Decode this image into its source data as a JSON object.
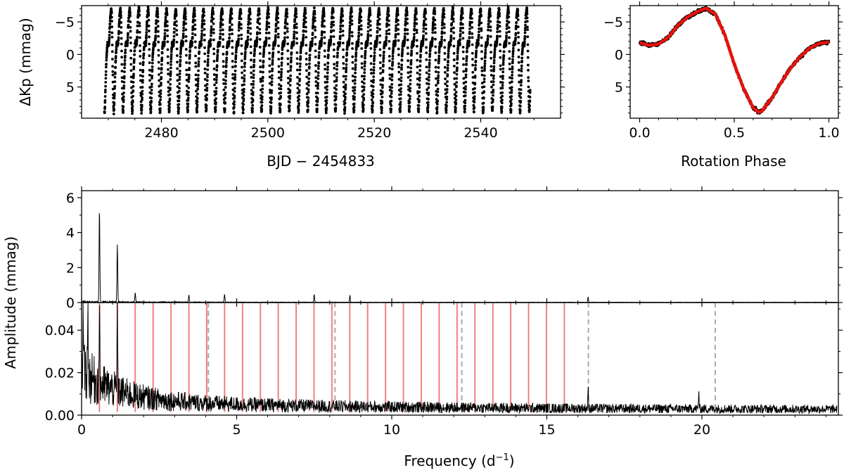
{
  "chart_data": [
    {
      "id": "light-curve",
      "type": "scatter",
      "xlabel": "BJD − 2454833",
      "ylabel": "ΔKp (mmag)",
      "xlim": [
        2465,
        2555
      ],
      "ylim": [
        9.8,
        -7.5
      ],
      "y_inverted": true,
      "xticks": [
        2480,
        2500,
        2520,
        2540
      ],
      "yticks": [
        -5,
        0,
        5
      ],
      "data_start": 2469.3,
      "data_end": 2549.3,
      "rotation_period_days": 1.735,
      "amplitude_mmag": 7.6,
      "point_color": "#000000"
    },
    {
      "id": "phased-curve",
      "type": "scatter",
      "xlabel": "Rotation Phase",
      "ylabel": "",
      "xlim": [
        -0.05,
        1.05
      ],
      "ylim": [
        9.8,
        -7.5
      ],
      "y_inverted": true,
      "xticks": [
        0.0,
        0.5,
        1.0
      ],
      "yticks": [
        -5,
        0,
        5
      ],
      "model_color": "#e8120c",
      "model_phase": [
        0.0,
        0.05,
        0.1,
        0.15,
        0.2,
        0.25,
        0.3,
        0.35,
        0.4,
        0.45,
        0.5,
        0.55,
        0.6,
        0.63,
        0.65,
        0.7,
        0.75,
        0.8,
        0.85,
        0.9,
        0.95,
        1.0
      ],
      "model_mag": [
        -1.8,
        -1.4,
        -1.6,
        -2.6,
        -4.4,
        -5.7,
        -6.5,
        -7.1,
        -6.2,
        -3.0,
        1.5,
        5.3,
        8.2,
        8.9,
        8.6,
        6.6,
        4.2,
        2.0,
        0.3,
        -1.0,
        -1.7,
        -1.9
      ]
    },
    {
      "id": "amplitude-spectrum-full",
      "type": "line",
      "xlabel": "",
      "ylabel": "",
      "xlim": [
        0,
        24.4
      ],
      "ylim": [
        0,
        6.4
      ],
      "yticks": [
        0,
        2,
        4,
        6
      ],
      "peaks": [
        {
          "freq": 0.576,
          "amp": 5.32
        },
        {
          "freq": 1.153,
          "amp": 3.3
        },
        {
          "freq": 1.729,
          "amp": 0.55
        },
        {
          "freq": 3.46,
          "amp": 0.4
        },
        {
          "freq": 4.61,
          "amp": 0.45
        },
        {
          "freq": 7.5,
          "amp": 0.45
        },
        {
          "freq": 8.65,
          "amp": 0.4
        },
        {
          "freq": 16.33,
          "amp": 0.3
        }
      ]
    },
    {
      "id": "amplitude-spectrum-zoom",
      "type": "line",
      "xlabel": "Frequency (d⁻¹)",
      "ylabel": "Amplitude (mmag)",
      "xlim": [
        0,
        24.4
      ],
      "ylim": [
        0,
        0.053
      ],
      "xticks": [
        0,
        5,
        10,
        15,
        20
      ],
      "yticks": [
        0.0,
        0.02,
        0.04
      ],
      "rotation_harmonics": [
        0.576,
        1.153,
        1.729,
        2.306,
        2.882,
        3.459,
        4.035,
        4.612,
        5.188,
        5.765,
        6.341,
        6.918,
        7.494,
        8.07,
        8.647,
        9.223,
        9.8,
        10.376,
        10.953,
        11.529,
        12.106,
        12.682,
        13.259,
        13.835,
        14.412,
        14.988,
        15.565
      ],
      "harmonic_color": "#f08080",
      "dashed_lines": [
        4.09,
        8.17,
        12.26,
        16.34,
        20.43
      ],
      "dashed_color": "#a9a9a9",
      "noise_spikes": [
        {
          "freq": 0.05,
          "amp": 0.045
        },
        {
          "freq": 0.2,
          "amp": 0.044
        },
        {
          "freq": 0.576,
          "amp": 0.043
        },
        {
          "freq": 1.153,
          "amp": 0.045
        },
        {
          "freq": 16.33,
          "amp": 0.011
        },
        {
          "freq": 19.9,
          "amp": 0.01
        }
      ]
    }
  ],
  "labels": {
    "lc_xlabel": "BJD − 2454833",
    "lc_ylabel": "ΔKp (mmag)",
    "phase_xlabel": "Rotation Phase",
    "spec_ylabel": "Amplitude (mmag)",
    "freq_xlabel_main": "Frequency (d",
    "freq_xlabel_sup": "−1",
    "freq_xlabel_end": ")"
  }
}
